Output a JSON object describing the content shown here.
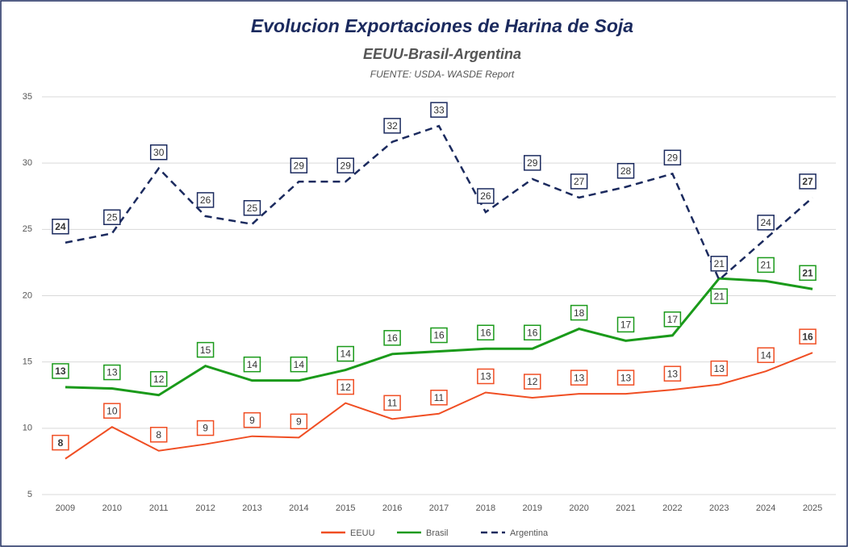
{
  "chart_data": {
    "type": "line",
    "title": "Evolucion Exportaciones de Harina de Soja",
    "subtitle": "EEUU-Brasil-Argentina",
    "source": "FUENTE: USDA- WASDE Report",
    "categories": [
      "2009",
      "2010",
      "2011",
      "2012",
      "2013",
      "2014",
      "2015",
      "2016",
      "2017",
      "2018",
      "2019",
      "2020",
      "2021",
      "2022",
      "2023",
      "2024",
      "2025"
    ],
    "ylim": [
      5,
      35
    ],
    "yticks": [
      5,
      10,
      15,
      20,
      25,
      30,
      35
    ],
    "grid": true,
    "legend": "bottom",
    "series": [
      {
        "name": "EEUU",
        "color": "#f04e23",
        "dash": false,
        "values": [
          7.7,
          10.1,
          8.3,
          8.8,
          9.4,
          9.3,
          11.9,
          10.7,
          11.1,
          12.7,
          12.3,
          12.6,
          12.6,
          12.9,
          13.3,
          14.3,
          15.7
        ],
        "value_labels": [
          "8",
          "10",
          "8",
          "9",
          "9",
          "9",
          "12",
          "11",
          "11",
          "13",
          "12",
          "13",
          "13",
          "13",
          "13",
          "14",
          "16"
        ]
      },
      {
        "name": "Brasil",
        "color": "#1a9a1a",
        "dash": false,
        "values": [
          13.1,
          13.0,
          12.5,
          14.7,
          13.6,
          13.6,
          14.4,
          15.6,
          15.8,
          16.0,
          16.0,
          17.5,
          16.6,
          17.0,
          21.3,
          21.1,
          20.5
        ],
        "value_labels": [
          "13",
          "13",
          "12",
          "15",
          "14",
          "14",
          "14",
          "16",
          "16",
          "16",
          "16",
          "18",
          "17",
          "17",
          "21",
          "21",
          "21"
        ]
      },
      {
        "name": "Argentina",
        "color": "#1b2a5e",
        "dash": true,
        "values": [
          24.0,
          24.7,
          29.6,
          26.0,
          25.4,
          28.6,
          28.6,
          31.6,
          32.8,
          26.3,
          28.8,
          27.4,
          28.2,
          29.2,
          21.2,
          24.3,
          27.4
        ],
        "value_labels": [
          "24",
          "25",
          "30",
          "26",
          "25",
          "29",
          "29",
          "32",
          "33",
          "26",
          "29",
          "27",
          "28",
          "29",
          "21",
          "24",
          "27"
        ]
      }
    ]
  }
}
